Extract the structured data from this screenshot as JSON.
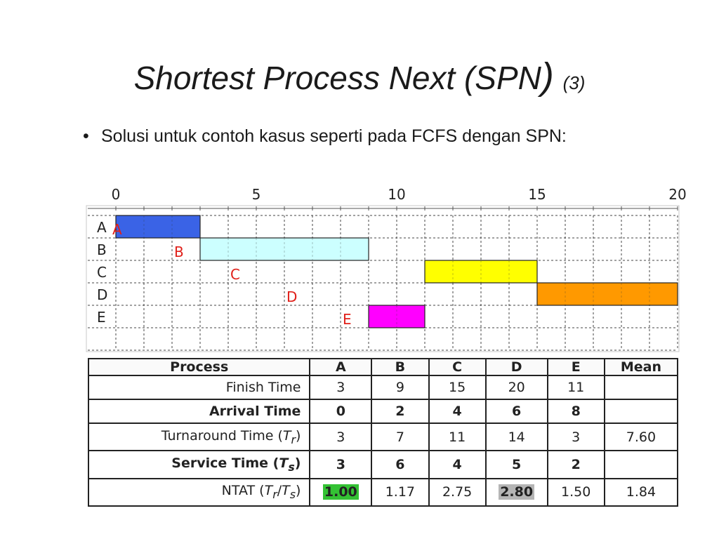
{
  "slide": {
    "title_main": "Shortest Process Next (SPN",
    "title_paren": ")",
    "title_num": "(3)",
    "bullet_symbol": "•",
    "bullet": "Solusi untuk contoh kasus seperti pada FCFS dengan SPN:"
  },
  "chart_data": {
    "type": "gantt",
    "x_ticks": [
      0,
      5,
      10,
      15,
      20
    ],
    "x_range": [
      0,
      20
    ],
    "rows": [
      "A",
      "B",
      "C",
      "D",
      "E"
    ],
    "bars": [
      {
        "process": "A",
        "start": 0,
        "end": 3,
        "color": "#3a63e6"
      },
      {
        "process": "B",
        "start": 3,
        "end": 9,
        "color": "#ccffff"
      },
      {
        "process": "C",
        "start": 11,
        "end": 15,
        "color": "#ffff00"
      },
      {
        "process": "D",
        "start": 15,
        "end": 20,
        "color": "#ff9900"
      },
      {
        "process": "E",
        "start": 9,
        "end": 11,
        "color": "#ff00ff"
      }
    ],
    "arrival_markers": [
      {
        "label": "A",
        "time": 0
      },
      {
        "label": "B",
        "time": 2
      },
      {
        "label": "C",
        "time": 4
      },
      {
        "label": "D",
        "time": 6
      },
      {
        "label": "E",
        "time": 8
      }
    ],
    "grid": true
  },
  "table": {
    "headers": [
      "Process",
      "A",
      "B",
      "C",
      "D",
      "E",
      "Mean"
    ],
    "rows": [
      {
        "label": "Finish Time",
        "label_suffix": "",
        "values": [
          "3",
          "9",
          "15",
          "20",
          "11",
          ""
        ],
        "bold": false
      },
      {
        "label": "Arrival Time",
        "label_suffix": "",
        "values": [
          "0",
          "2",
          "4",
          "6",
          "8",
          ""
        ],
        "bold": true
      },
      {
        "label": "Turnaround Time (",
        "label_sym": "T",
        "label_sub": "r",
        "label_close": ")",
        "values": [
          "3",
          "7",
          "11",
          "14",
          "3",
          "7.60"
        ],
        "bold": false
      },
      {
        "label": "Service Time (",
        "label_sym": "T",
        "label_sub": "s",
        "label_close": ")",
        "values": [
          "3",
          "6",
          "4",
          "5",
          "2",
          ""
        ],
        "bold": true
      },
      {
        "label": "NTAT (",
        "label_sym": "T",
        "label_sub": "r",
        "label_mid": "/",
        "label_sym2": "T",
        "label_sub2": "s",
        "label_close": ")",
        "values": [
          "1.00",
          "1.17",
          "2.75",
          "2.80",
          "1.50",
          "1.84"
        ],
        "bold": false
      }
    ]
  },
  "highlights": {
    "green": "#34c234",
    "grey": "#b5b5b5"
  }
}
